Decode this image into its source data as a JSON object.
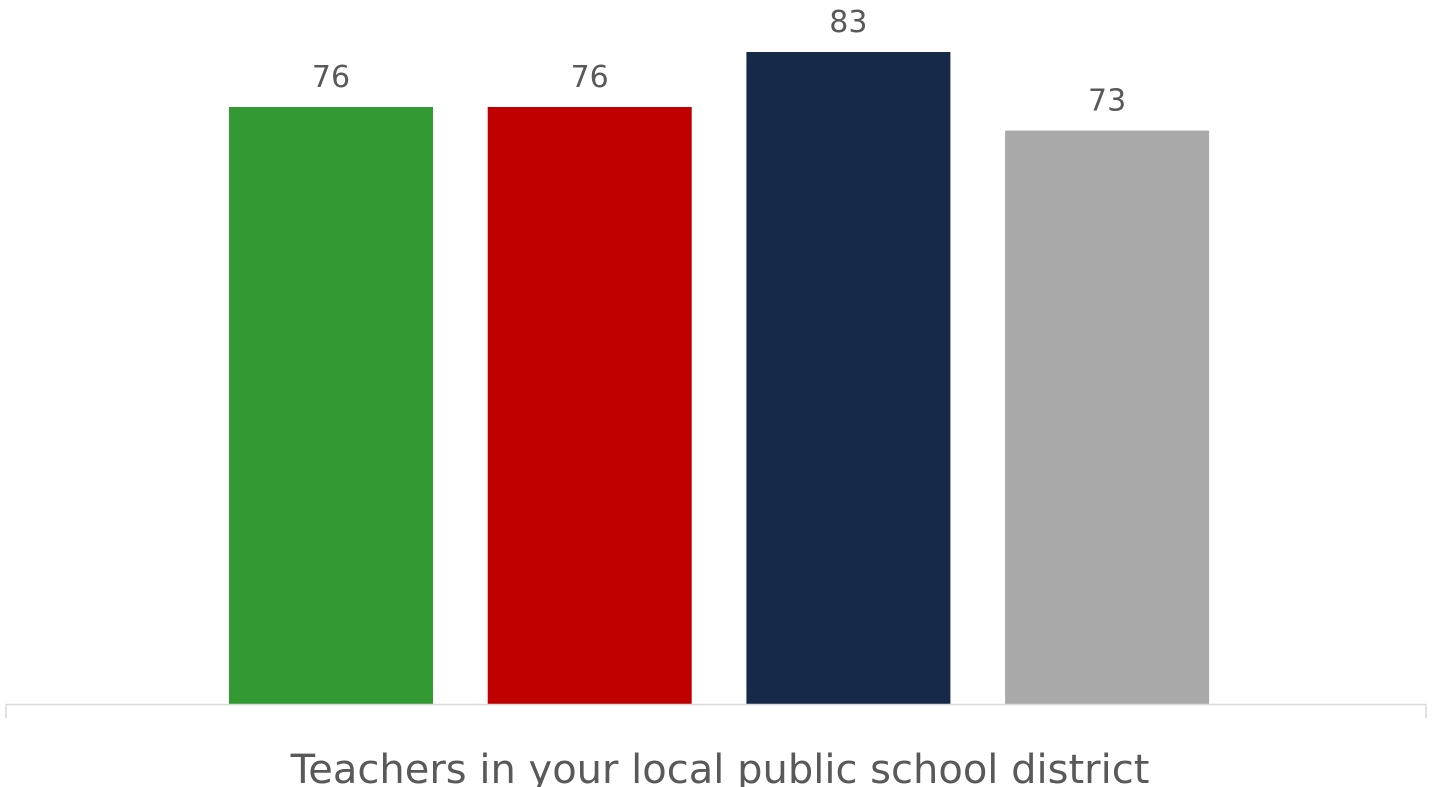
{
  "chart_data": {
    "type": "bar",
    "categories": [
      "Teachers in your local public school district"
    ],
    "series": [
      {
        "values": [
          76
        ],
        "color": "#339933"
      },
      {
        "values": [
          76
        ],
        "color": "#C00000"
      },
      {
        "values": [
          83
        ],
        "color": "#162948"
      },
      {
        "values": [
          73
        ],
        "color": "#A9A9A9"
      }
    ],
    "title": "",
    "xlabel": "",
    "ylabel": "",
    "ylim": [
      0,
      85
    ],
    "grid": false,
    "legend": "none",
    "data_labels": true,
    "colors": {
      "axis": "#D9D9D9",
      "label_text": "#595959"
    }
  }
}
